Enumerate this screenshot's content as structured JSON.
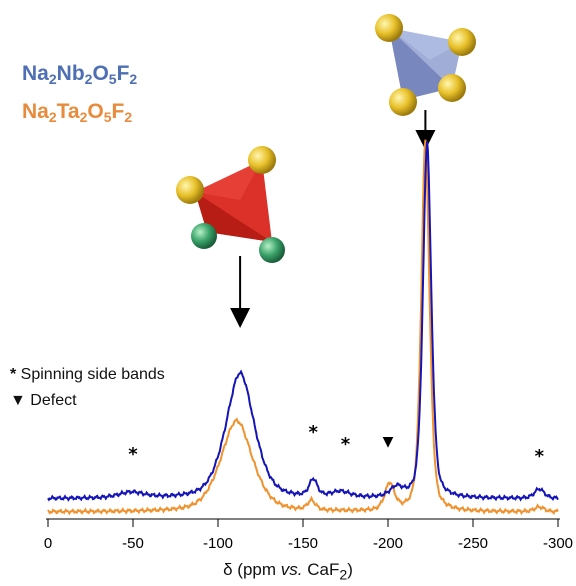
{
  "chart_data": {
    "type": "line",
    "xlabel_delta": "δ",
    "xlabel_parts": [
      "(ppm ",
      "vs.",
      " CaF",
      "2",
      ")"
    ],
    "xlim": [
      0,
      -300
    ],
    "xticks": [
      0,
      -50,
      -100,
      -150,
      -200,
      -250,
      -300
    ],
    "xtick_labels": [
      "0",
      "-50",
      "-100",
      "-150",
      "-200",
      "-250",
      "-300"
    ],
    "grid": false,
    "series": [
      {
        "formula": [
          [
            "Na",
            "2"
          ],
          [
            "Nb",
            "2"
          ],
          [
            "O",
            "5"
          ],
          [
            "F",
            "2"
          ]
        ],
        "color": "#1414b8",
        "baseline": 0.07,
        "peaks": [
          {
            "center": -113,
            "height": 0.66,
            "width": 9
          },
          {
            "center": -223,
            "height": 1.88,
            "width": 2.6
          },
          {
            "center": -156,
            "height": 0.09,
            "width": 2.5
          },
          {
            "center": -172,
            "height": 0.03,
            "width": 6
          },
          {
            "center": -205,
            "height": 0.05,
            "width": 4
          },
          {
            "center": -289,
            "height": 0.05,
            "width": 3
          },
          {
            "center": -49,
            "height": 0.03,
            "width": 8
          }
        ]
      },
      {
        "formula": [
          [
            "Na",
            "2"
          ],
          [
            "Ta",
            "2"
          ],
          [
            "O",
            "5"
          ],
          [
            "F",
            "2"
          ]
        ],
        "color": "#f0922e",
        "baseline": 0.0,
        "peaks": [
          {
            "center": -111,
            "height": 0.48,
            "width": 10
          },
          {
            "center": -222,
            "height": 1.95,
            "width": 2.6
          },
          {
            "center": -155,
            "height": 0.05,
            "width": 2.5
          },
          {
            "center": -201,
            "height": 0.14,
            "width": 3
          },
          {
            "center": -289,
            "height": 0.025,
            "width": 3
          }
        ]
      }
    ],
    "annotations": [
      {
        "symbol": "*",
        "x": -50,
        "type": "spinning side band"
      },
      {
        "symbol": "*",
        "x": -156,
        "type": "spinning side band"
      },
      {
        "symbol": "*",
        "x": -175,
        "type": "spinning side band"
      },
      {
        "symbol": "▼",
        "x": -200,
        "type": "defect"
      },
      {
        "symbol": "*",
        "x": -289,
        "type": "spinning side band"
      }
    ],
    "arrows": [
      {
        "x": -113,
        "points_to": "octahedral NbO/TaO site (red polyhedron)"
      },
      {
        "x": -222,
        "points_to": "tetrahedral F site (blue polyhedron)"
      }
    ]
  },
  "legend_notes": [
    {
      "symbol": "*",
      "text": " Spinning side bands"
    },
    {
      "symbol": "▼",
      "text": "  Defect"
    }
  ],
  "colors": {
    "legend_nb": "#4f6fb5",
    "legend_ta": "#e88b3c",
    "polyhedron_red": "#d9261c",
    "polyhedron_blue": "#8f9fcf",
    "atom_yellow": "#e8c12a",
    "atom_green": "#3aa36a"
  }
}
